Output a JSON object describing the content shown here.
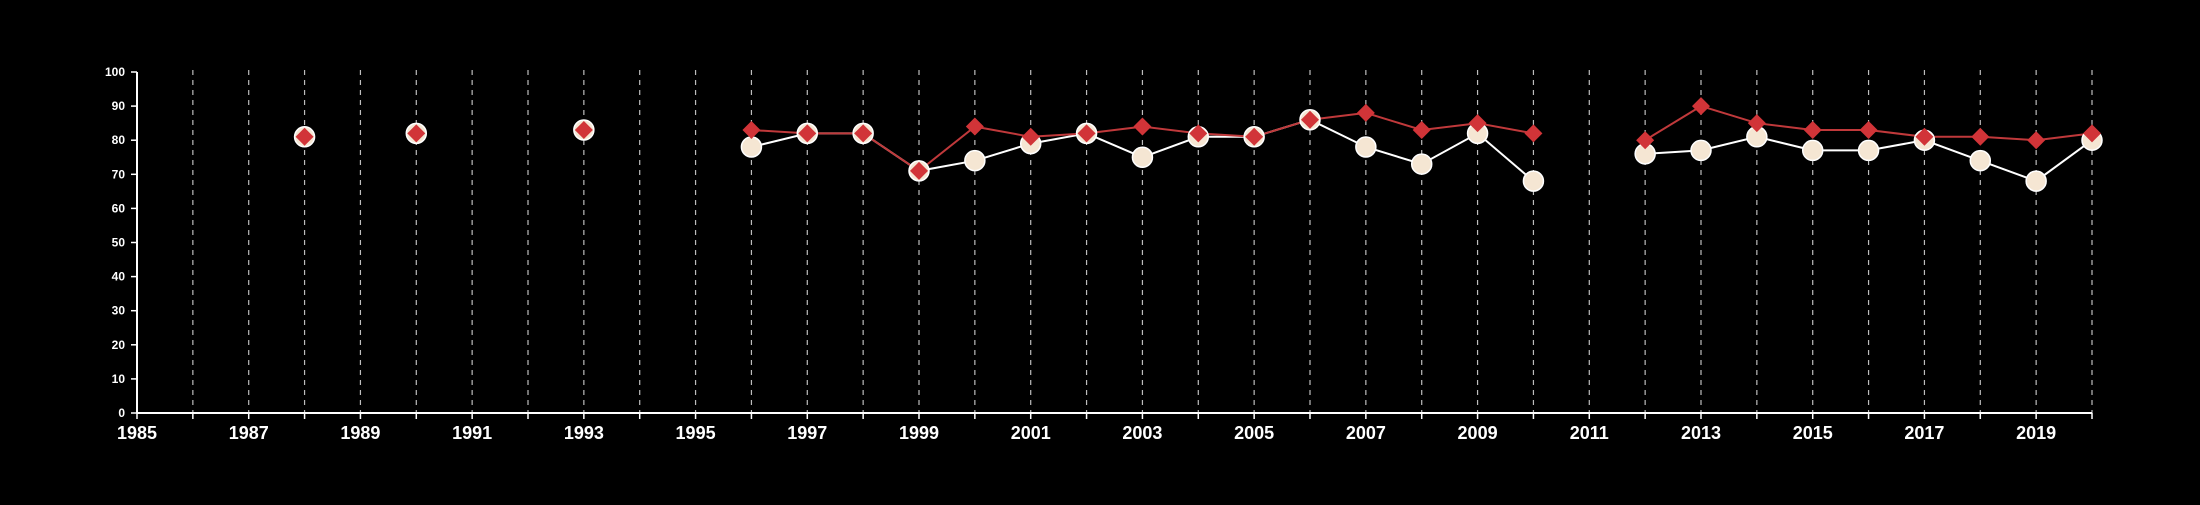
{
  "chart_data": {
    "type": "line",
    "title": "",
    "xlabel": "",
    "ylabel": "",
    "xlim": [
      1985,
      2020
    ],
    "ylim": [
      0,
      100
    ],
    "grid": "vertical dashed lines at each year",
    "legend": "none",
    "background": "#000000",
    "x_tick_labels": [
      "1985",
      "1987",
      "1989",
      "1991",
      "1993",
      "1995",
      "1997",
      "1999",
      "2001",
      "2003",
      "2005",
      "2007",
      "2009",
      "2011",
      "2013",
      "2015",
      "2017",
      "2019"
    ],
    "y_tick_labels": [
      "0",
      "10",
      "20",
      "30",
      "40",
      "50",
      "60",
      "70",
      "80",
      "90",
      "100"
    ],
    "series": [
      {
        "marker": "circle",
        "color": "#ffffff",
        "marker_fill": "#f5e6d3",
        "points": [
          {
            "x": 1988,
            "y": 81
          },
          {
            "x": 1990,
            "y": 82
          },
          {
            "x": 1993,
            "y": 83
          },
          {
            "x": 1996,
            "y": 78
          },
          {
            "x": 1997,
            "y": 82
          },
          {
            "x": 1998,
            "y": 82
          },
          {
            "x": 1999,
            "y": 71
          },
          {
            "x": 2000,
            "y": 74
          },
          {
            "x": 2001,
            "y": 79
          },
          {
            "x": 2002,
            "y": 82
          },
          {
            "x": 2003,
            "y": 75
          },
          {
            "x": 2004,
            "y": 81
          },
          {
            "x": 2005,
            "y": 81
          },
          {
            "x": 2006,
            "y": 86
          },
          {
            "x": 2007,
            "y": 78
          },
          {
            "x": 2008,
            "y": 73
          },
          {
            "x": 2009,
            "y": 82
          },
          {
            "x": 2010,
            "y": 68
          },
          {
            "x": 2012,
            "y": 76
          },
          {
            "x": 2013,
            "y": 77
          },
          {
            "x": 2014,
            "y": 81
          },
          {
            "x": 2015,
            "y": 77
          },
          {
            "x": 2016,
            "y": 77
          },
          {
            "x": 2017,
            "y": 80
          },
          {
            "x": 2018,
            "y": 74
          },
          {
            "x": 2019,
            "y": 68
          },
          {
            "x": 2020,
            "y": 80
          }
        ]
      },
      {
        "marker": "diamond",
        "color": "#c0393b",
        "marker_fill": "#d13438",
        "points": [
          {
            "x": 1988,
            "y": 81
          },
          {
            "x": 1990,
            "y": 82
          },
          {
            "x": 1993,
            "y": 83
          },
          {
            "x": 1996,
            "y": 83
          },
          {
            "x": 1997,
            "y": 82
          },
          {
            "x": 1998,
            "y": 82
          },
          {
            "x": 1999,
            "y": 71
          },
          {
            "x": 2000,
            "y": 84
          },
          {
            "x": 2001,
            "y": 81
          },
          {
            "x": 2002,
            "y": 82
          },
          {
            "x": 2003,
            "y": 84
          },
          {
            "x": 2004,
            "y": 82
          },
          {
            "x": 2005,
            "y": 81
          },
          {
            "x": 2006,
            "y": 86
          },
          {
            "x": 2007,
            "y": 88
          },
          {
            "x": 2008,
            "y": 83
          },
          {
            "x": 2009,
            "y": 85
          },
          {
            "x": 2010,
            "y": 82
          },
          {
            "x": 2012,
            "y": 80
          },
          {
            "x": 2013,
            "y": 90
          },
          {
            "x": 2014,
            "y": 85
          },
          {
            "x": 2015,
            "y": 83
          },
          {
            "x": 2016,
            "y": 83
          },
          {
            "x": 2017,
            "y": 81
          },
          {
            "x": 2018,
            "y": 81
          },
          {
            "x": 2019,
            "y": 80
          },
          {
            "x": 2020,
            "y": 82
          }
        ]
      }
    ]
  }
}
